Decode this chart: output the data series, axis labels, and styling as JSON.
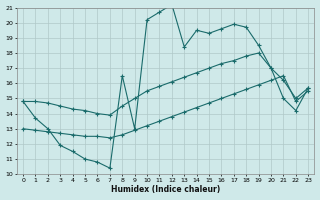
{
  "xlabel": "Humidex (Indice chaleur)",
  "ylabel": "",
  "xlim": [
    -0.5,
    23.5
  ],
  "ylim": [
    10,
    21
  ],
  "xticks": [
    0,
    1,
    2,
    3,
    4,
    5,
    6,
    7,
    8,
    9,
    10,
    11,
    12,
    13,
    14,
    15,
    16,
    17,
    18,
    19,
    20,
    21,
    22,
    23
  ],
  "yticks": [
    10,
    11,
    12,
    13,
    14,
    15,
    16,
    17,
    18,
    19,
    20,
    21
  ],
  "bg_color": "#cfe9e9",
  "grid_color": "#b0c8c8",
  "line_color": "#1a6b6b",
  "series": [
    {
      "x": [
        0,
        1,
        2,
        3,
        4,
        5,
        6,
        7,
        8,
        9,
        10,
        11,
        12,
        13,
        14,
        15,
        16,
        17,
        18,
        19,
        20,
        21,
        22,
        23
      ],
      "y": [
        14.8,
        13.7,
        13.0,
        11.9,
        11.5,
        11.0,
        10.8,
        10.4,
        16.5,
        13.0,
        20.2,
        20.7,
        21.2,
        18.4,
        19.5,
        19.3,
        19.6,
        19.9,
        19.7,
        18.5,
        17.0,
        15.0,
        14.2,
        15.7
      ]
    },
    {
      "x": [
        0,
        1,
        2,
        3,
        4,
        5,
        6,
        7,
        8,
        9,
        10,
        11,
        12,
        13,
        14,
        15,
        16,
        17,
        18,
        19,
        20,
        21,
        22,
        23
      ],
      "y": [
        14.8,
        14.8,
        14.7,
        14.5,
        14.3,
        14.2,
        14.0,
        13.9,
        14.5,
        15.0,
        15.5,
        15.8,
        16.1,
        16.4,
        16.7,
        17.0,
        17.3,
        17.5,
        17.8,
        18.0,
        17.0,
        16.2,
        15.0,
        15.7
      ]
    },
    {
      "x": [
        0,
        1,
        2,
        3,
        4,
        5,
        6,
        7,
        8,
        9,
        10,
        11,
        12,
        13,
        14,
        15,
        16,
        17,
        18,
        19,
        20,
        21,
        22,
        23
      ],
      "y": [
        13.0,
        12.9,
        12.8,
        12.7,
        12.6,
        12.5,
        12.5,
        12.4,
        12.6,
        12.9,
        13.2,
        13.5,
        13.8,
        14.1,
        14.4,
        14.7,
        15.0,
        15.3,
        15.6,
        15.9,
        16.2,
        16.5,
        14.8,
        15.5
      ]
    }
  ]
}
